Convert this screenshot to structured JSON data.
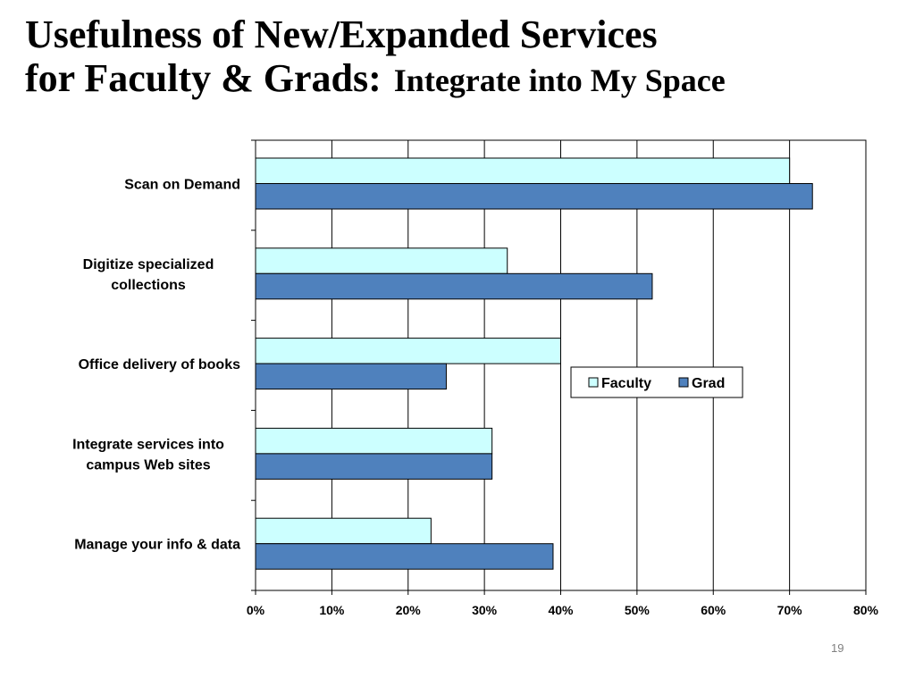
{
  "slide": {
    "title_line1": "Usefulness of New/Expanded Services",
    "title_line2": "for Faculty & Grads:",
    "title_line2_sub": "Integrate into My Space",
    "page_number": "19"
  },
  "colors": {
    "faculty": "#CCFFFF",
    "grad": "#4F81BD",
    "bar_border": "#000000",
    "grid": "#000000"
  },
  "chart_data": {
    "type": "bar",
    "orientation": "horizontal",
    "categories": [
      [
        "Scan on Demand"
      ],
      [
        "Digitize specialized",
        "collections"
      ],
      [
        "Office delivery of books"
      ],
      [
        "Integrate services into",
        "campus Web sites"
      ],
      [
        "Manage your info & data"
      ]
    ],
    "series": [
      {
        "name": "Faculty",
        "values": [
          70,
          33,
          40,
          31,
          23
        ]
      },
      {
        "name": "Grad",
        "values": [
          73,
          52,
          25,
          31,
          39
        ]
      }
    ],
    "xlim": [
      0,
      80
    ],
    "x_ticks": [
      "0%",
      "10%",
      "20%",
      "30%",
      "40%",
      "50%",
      "60%",
      "70%",
      "80%"
    ],
    "grid": true,
    "legend_position": "center-right",
    "xlabel": "",
    "ylabel": ""
  }
}
